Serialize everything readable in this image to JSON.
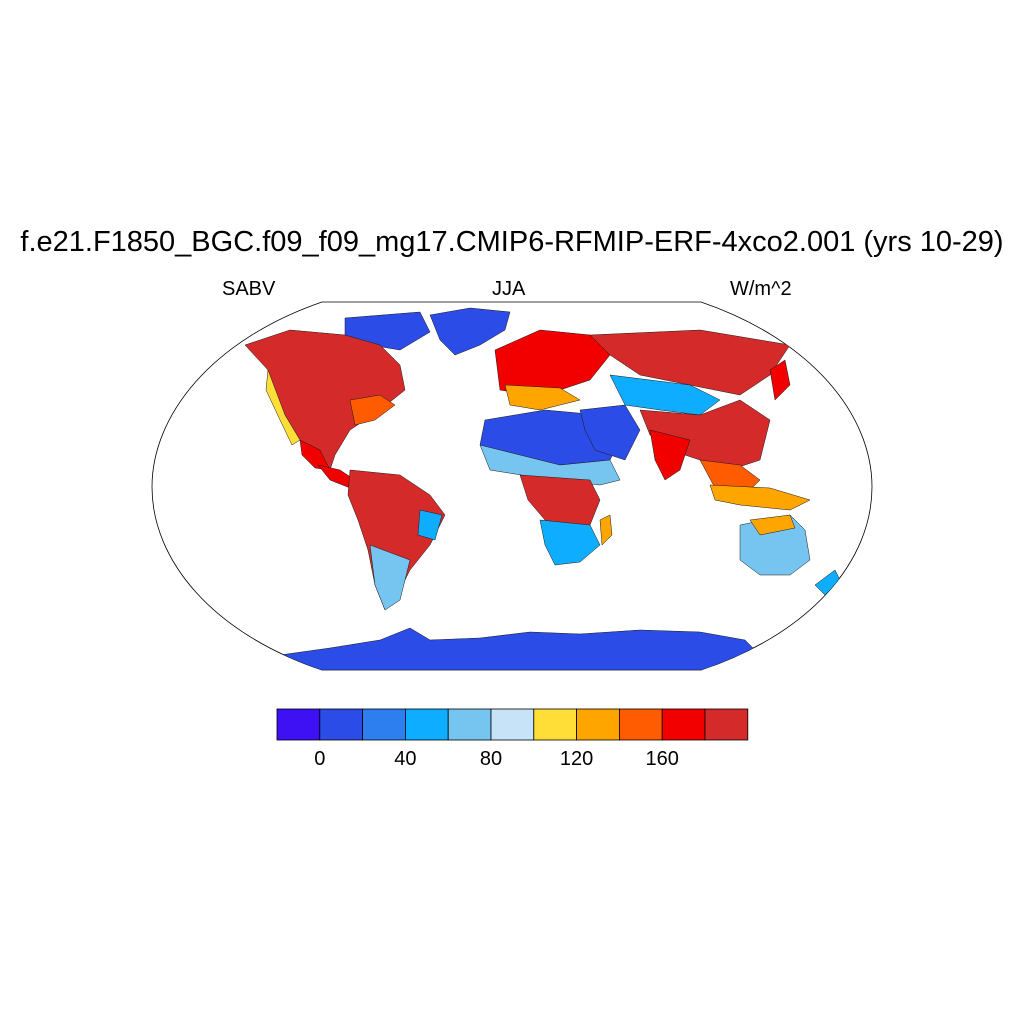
{
  "title": "f.e21.F1850_BGC.f09_f09_mg17.CMIP6-RFMIP-ERF-4xco2.001 (yrs 10-29)",
  "left_string": "SABV",
  "center_string": "JJA",
  "right_string": "W/m^2",
  "colorbar": {
    "colors": [
      "#3e11f5",
      "#2b4ce6",
      "#2d7ff0",
      "#0fadff",
      "#76c4f0",
      "#c7e3f7",
      "#ffde38",
      "#ffa500",
      "#ff5b00",
      "#f20000",
      "#d42a2a"
    ],
    "tick_labels": [
      "0",
      "40",
      "80",
      "120",
      "160"
    ]
  },
  "colors": {
    "ocean": "#ffffff",
    "antarctica": "#2b4ce6",
    "greenland": "#2b4ce6",
    "desert": "#2b4ce6",
    "hot": "#d42a2a",
    "warm": "#f20000",
    "orange": "#ff5b00",
    "mid": "#76c4f0"
  }
}
